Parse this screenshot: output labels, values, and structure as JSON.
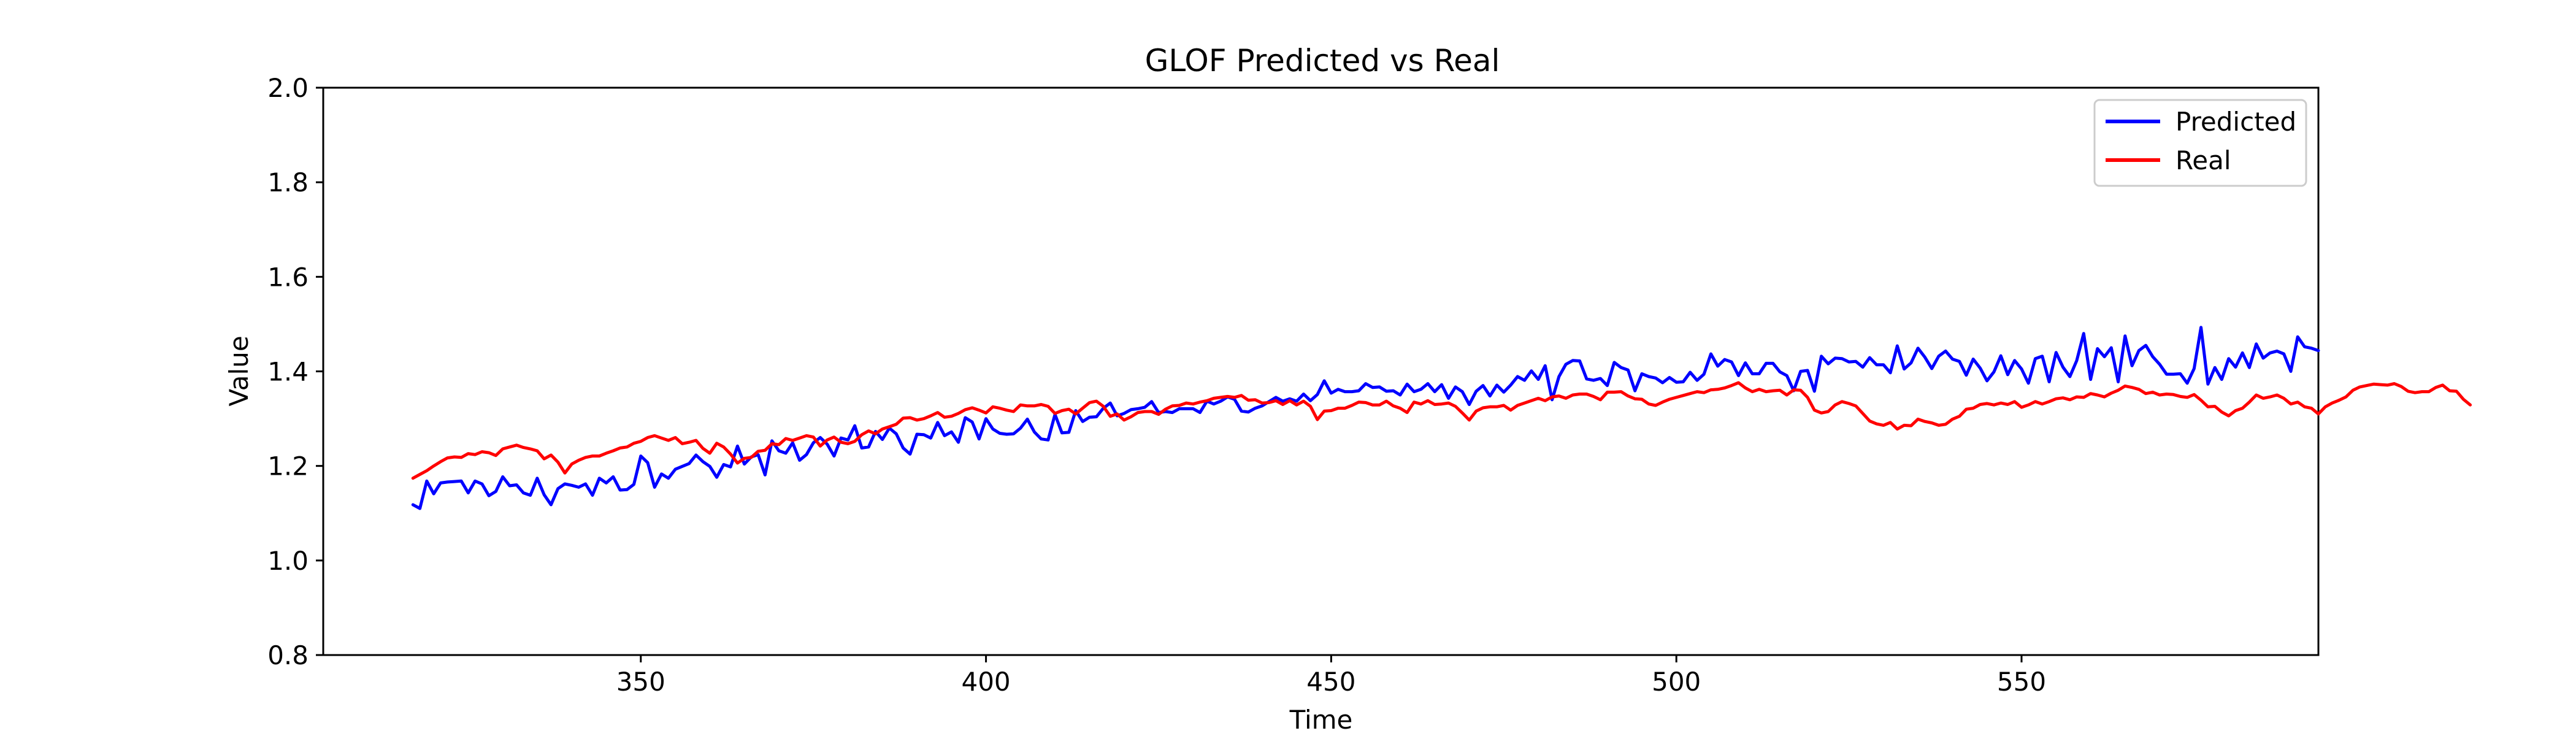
{
  "chart_data": {
    "type": "line",
    "title": "GLOF Predicted vs Real",
    "xlabel": "Time",
    "ylabel": "Value",
    "xlim": [
      304,
      593
    ],
    "ylim": [
      0.8,
      2.0
    ],
    "xticks": [
      350,
      400,
      450,
      500,
      550
    ],
    "yticks": [
      0.8,
      1.0,
      1.2,
      1.4,
      1.6,
      1.8,
      2.0
    ],
    "xtick_labels": [
      "350",
      "400",
      "450",
      "500",
      "550"
    ],
    "ytick_labels": [
      "0.8",
      "1.0",
      "1.2",
      "1.4",
      "1.6",
      "1.8",
      "2.0"
    ],
    "grid": false,
    "legend_position": "top-right",
    "x_start": 317,
    "x_step": 1,
    "series": [
      {
        "name": "Predicted",
        "color": "#0000ff",
        "values": [
          1.118,
          1.11,
          1.168,
          1.141,
          1.164,
          1.166,
          1.167,
          1.168,
          1.143,
          1.168,
          1.162,
          1.137,
          1.146,
          1.177,
          1.158,
          1.16,
          1.143,
          1.138,
          1.174,
          1.139,
          1.118,
          1.152,
          1.162,
          1.159,
          1.155,
          1.162,
          1.138,
          1.174,
          1.164,
          1.177,
          1.149,
          1.15,
          1.161,
          1.221,
          1.207,
          1.155,
          1.183,
          1.174,
          1.193,
          1.199,
          1.205,
          1.223,
          1.209,
          1.199,
          1.176,
          1.203,
          1.198,
          1.242,
          1.204,
          1.219,
          1.224,
          1.181,
          1.253,
          1.232,
          1.227,
          1.249,
          1.212,
          1.224,
          1.249,
          1.26,
          1.246,
          1.221,
          1.259,
          1.255,
          1.285,
          1.238,
          1.24,
          1.273,
          1.256,
          1.28,
          1.268,
          1.238,
          1.225,
          1.267,
          1.266,
          1.259,
          1.292,
          1.264,
          1.272,
          1.25,
          1.302,
          1.293,
          1.257,
          1.3,
          1.278,
          1.269,
          1.267,
          1.268,
          1.28,
          1.299,
          1.272,
          1.257,
          1.255,
          1.309,
          1.27,
          1.271,
          1.317,
          1.294,
          1.303,
          1.304,
          1.322,
          1.333,
          1.306,
          1.311,
          1.319,
          1.321,
          1.324,
          1.336,
          1.313,
          1.315,
          1.313,
          1.321,
          1.321,
          1.321,
          1.313,
          1.337,
          1.331,
          1.337,
          1.346,
          1.341,
          1.316,
          1.314,
          1.322,
          1.327,
          1.336,
          1.345,
          1.337,
          1.342,
          1.337,
          1.352,
          1.338,
          1.351,
          1.38,
          1.354,
          1.362,
          1.357,
          1.357,
          1.359,
          1.374,
          1.366,
          1.367,
          1.358,
          1.359,
          1.35,
          1.373,
          1.357,
          1.362,
          1.374,
          1.357,
          1.372,
          1.343,
          1.367,
          1.357,
          1.33,
          1.358,
          1.37,
          1.348,
          1.371,
          1.356,
          1.371,
          1.389,
          1.381,
          1.401,
          1.383,
          1.412,
          1.34,
          1.389,
          1.415,
          1.423,
          1.422,
          1.384,
          1.381,
          1.385,
          1.37,
          1.419,
          1.408,
          1.403,
          1.359,
          1.395,
          1.389,
          1.386,
          1.376,
          1.387,
          1.377,
          1.378,
          1.398,
          1.381,
          1.394,
          1.437,
          1.411,
          1.425,
          1.42,
          1.391,
          1.418,
          1.395,
          1.395,
          1.417,
          1.417,
          1.399,
          1.391,
          1.359,
          1.4,
          1.402,
          1.358,
          1.432,
          1.416,
          1.428,
          1.427,
          1.42,
          1.421,
          1.409,
          1.429,
          1.414,
          1.414,
          1.397,
          1.454,
          1.405,
          1.418,
          1.449,
          1.43,
          1.406,
          1.432,
          1.443,
          1.426,
          1.421,
          1.392,
          1.426,
          1.407,
          1.38,
          1.399,
          1.433,
          1.393,
          1.423,
          1.405,
          1.375,
          1.427,
          1.432,
          1.378,
          1.44,
          1.409,
          1.389,
          1.423,
          1.48,
          1.383,
          1.448,
          1.431,
          1.45,
          1.378,
          1.475,
          1.412,
          1.444,
          1.455,
          1.431,
          1.415,
          1.394,
          1.394,
          1.395,
          1.375,
          1.406,
          1.493,
          1.373,
          1.408,
          1.383,
          1.427,
          1.409,
          1.439,
          1.408,
          1.458,
          1.428,
          1.439,
          1.443,
          1.437,
          1.4,
          1.473,
          1.452,
          1.449,
          1.444
        ]
      },
      {
        "name": "Real",
        "color": "#ff0000",
        "values": [
          1.174,
          1.182,
          1.19,
          1.2,
          1.209,
          1.217,
          1.219,
          1.218,
          1.226,
          1.224,
          1.23,
          1.228,
          1.222,
          1.236,
          1.24,
          1.244,
          1.239,
          1.236,
          1.232,
          1.215,
          1.223,
          1.208,
          1.185,
          1.204,
          1.212,
          1.218,
          1.221,
          1.221,
          1.227,
          1.232,
          1.238,
          1.24,
          1.248,
          1.252,
          1.26,
          1.264,
          1.259,
          1.254,
          1.26,
          1.247,
          1.25,
          1.254,
          1.237,
          1.227,
          1.248,
          1.24,
          1.225,
          1.206,
          1.216,
          1.218,
          1.231,
          1.233,
          1.247,
          1.245,
          1.258,
          1.254,
          1.259,
          1.264,
          1.261,
          1.242,
          1.255,
          1.261,
          1.25,
          1.247,
          1.252,
          1.266,
          1.274,
          1.268,
          1.278,
          1.283,
          1.288,
          1.301,
          1.302,
          1.297,
          1.3,
          1.306,
          1.313,
          1.303,
          1.305,
          1.311,
          1.319,
          1.323,
          1.318,
          1.312,
          1.325,
          1.322,
          1.318,
          1.315,
          1.329,
          1.327,
          1.327,
          1.33,
          1.326,
          1.311,
          1.317,
          1.32,
          1.31,
          1.322,
          1.334,
          1.337,
          1.326,
          1.305,
          1.31,
          1.297,
          1.304,
          1.313,
          1.315,
          1.315,
          1.309,
          1.32,
          1.327,
          1.328,
          1.333,
          1.331,
          1.335,
          1.338,
          1.343,
          1.345,
          1.347,
          1.345,
          1.349,
          1.339,
          1.34,
          1.333,
          1.334,
          1.338,
          1.33,
          1.338,
          1.329,
          1.337,
          1.326,
          1.298,
          1.316,
          1.317,
          1.322,
          1.322,
          1.328,
          1.335,
          1.334,
          1.329,
          1.329,
          1.337,
          1.327,
          1.322,
          1.313,
          1.335,
          1.331,
          1.338,
          1.33,
          1.331,
          1.333,
          1.326,
          1.312,
          1.297,
          1.316,
          1.323,
          1.325,
          1.325,
          1.328,
          1.318,
          1.328,
          1.333,
          1.338,
          1.343,
          1.338,
          1.346,
          1.348,
          1.343,
          1.35,
          1.352,
          1.352,
          1.347,
          1.34,
          1.356,
          1.356,
          1.357,
          1.348,
          1.342,
          1.341,
          1.331,
          1.328,
          1.335,
          1.341,
          1.345,
          1.349,
          1.353,
          1.357,
          1.355,
          1.361,
          1.362,
          1.365,
          1.37,
          1.376,
          1.365,
          1.357,
          1.362,
          1.357,
          1.359,
          1.36,
          1.35,
          1.361,
          1.36,
          1.345,
          1.318,
          1.312,
          1.315,
          1.329,
          1.336,
          1.332,
          1.327,
          1.311,
          1.295,
          1.289,
          1.286,
          1.292,
          1.278,
          1.286,
          1.285,
          1.299,
          1.294,
          1.291,
          1.286,
          1.288,
          1.299,
          1.305,
          1.32,
          1.322,
          1.33,
          1.332,
          1.329,
          1.333,
          1.33,
          1.336,
          1.324,
          1.329,
          1.336,
          1.331,
          1.336,
          1.342,
          1.344,
          1.34,
          1.346,
          1.345,
          1.353,
          1.35,
          1.346,
          1.354,
          1.36,
          1.369,
          1.366,
          1.362,
          1.353,
          1.356,
          1.35,
          1.352,
          1.351,
          1.347,
          1.345,
          1.351,
          1.339,
          1.325,
          1.326,
          1.314,
          1.306,
          1.317,
          1.322,
          1.335,
          1.35,
          1.343,
          1.346,
          1.35,
          1.343,
          1.331,
          1.335,
          1.325,
          1.322,
          1.31,
          1.325,
          1.333,
          1.339,
          1.346,
          1.36,
          1.367,
          1.37,
          1.373,
          1.372,
          1.371,
          1.374,
          1.368,
          1.358,
          1.355,
          1.357,
          1.357,
          1.366,
          1.371,
          1.359,
          1.358,
          1.341,
          1.329
        ]
      }
    ]
  }
}
